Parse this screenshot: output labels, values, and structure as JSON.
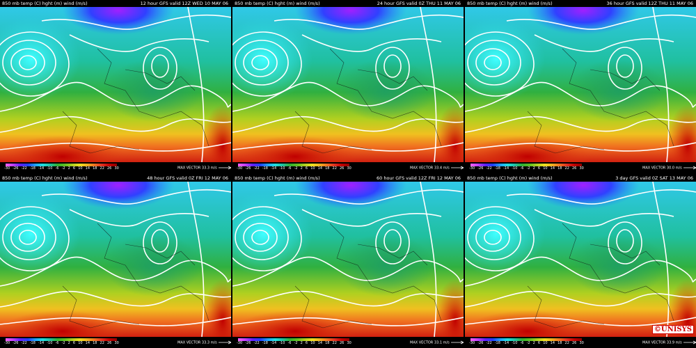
{
  "colorbar": {
    "labels": [
      "-30",
      "-26",
      "-22",
      "-18",
      "-14",
      "-10",
      "-6",
      "-2",
      "2",
      "6",
      "10",
      "14",
      "18",
      "22",
      "26",
      "30"
    ]
  },
  "max_vector_label": "MAX VECTOR",
  "logo": "©UNISYS",
  "panels": [
    {
      "title_left": "850 mb temp (C) hght (m) wind (m/s)",
      "title_right": "12 hour GFS valid 12Z WED 10 MAY 06",
      "max_vector": "33.3 m/s"
    },
    {
      "title_left": "850 mb temp (C) hght (m) wind (m/s)",
      "title_right": "24 hour GFS valid 0Z THU 11 MAY 06",
      "max_vector": "33.4 m/s"
    },
    {
      "title_left": "850 mb temp (C) hght (m) wind (m/s)",
      "title_right": "36 hour GFS valid 12Z THU 11 MAY 06",
      "max_vector": "30.0 m/s"
    },
    {
      "title_left": "850 mb temp (C) hght (m) wind (m/s)",
      "title_right": "48 hour GFS valid 0Z FRI 12 MAY 06",
      "max_vector": "33.3 m/s"
    },
    {
      "title_left": "850 mb temp (C) hght (m) wind (m/s)",
      "title_right": "60 hour GFS valid 12Z FRI 12 MAY 06",
      "max_vector": "33.1 m/s"
    },
    {
      "title_left": "850 mb temp (C) hght (m) wind (m/s)",
      "title_right": "3 day GFS valid 0Z SAT 13 MAY 06",
      "max_vector": "33.9 m/s"
    }
  ]
}
